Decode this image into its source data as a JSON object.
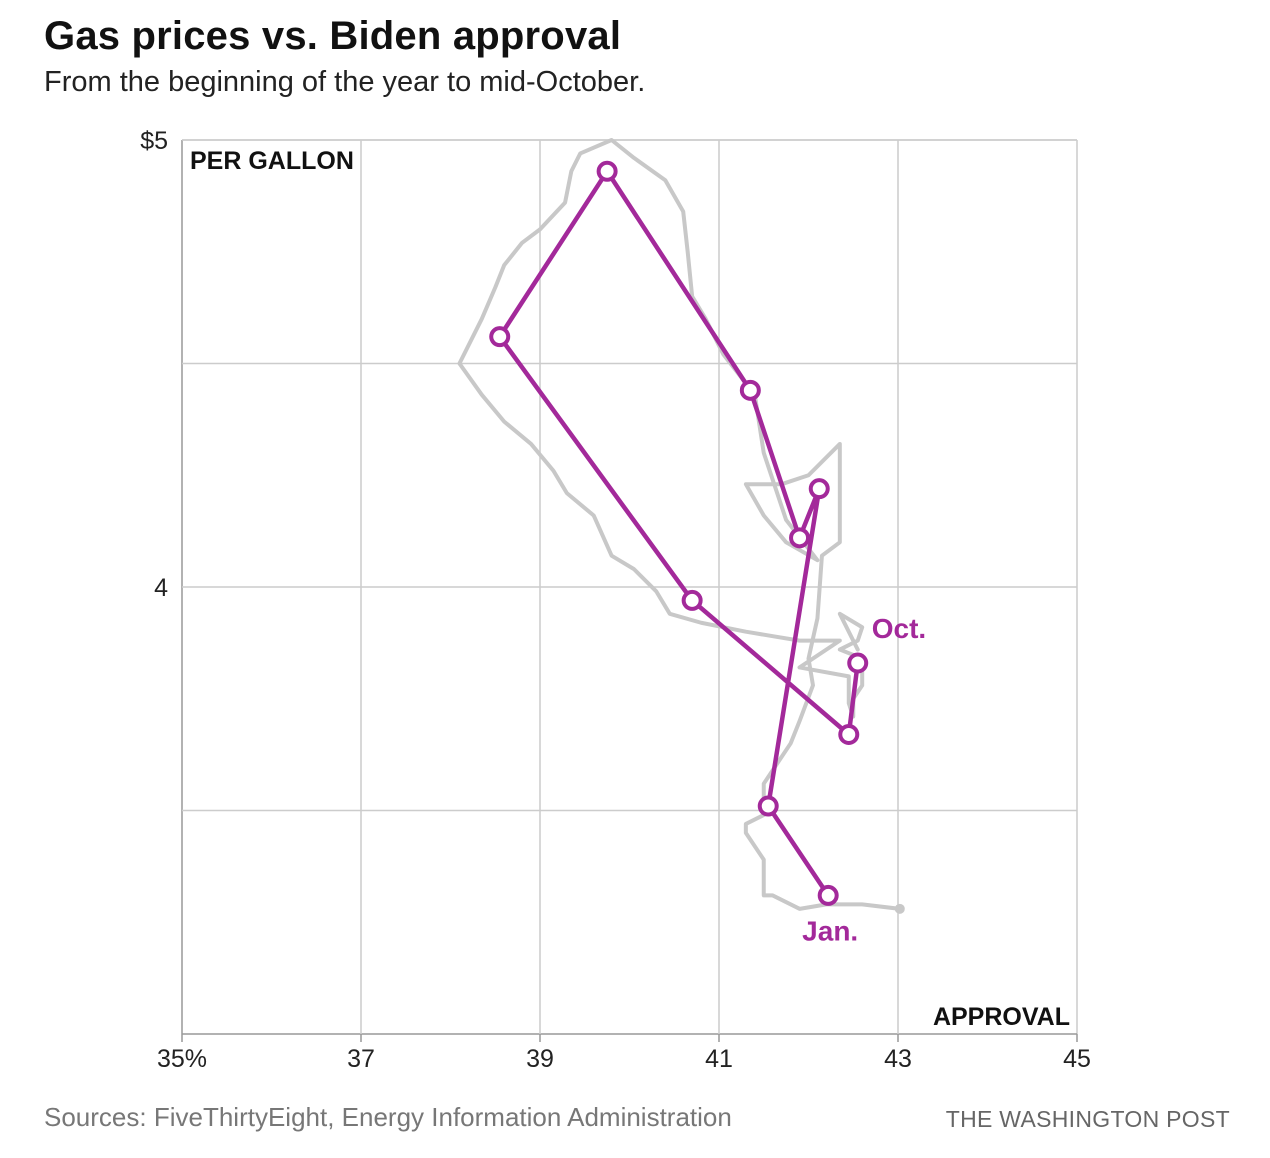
{
  "title": "Gas prices vs. Biden approval",
  "subtitle": "From the beginning of the year to mid-October.",
  "footer": {
    "source": "Sources: FiveThirtyEight, Energy Information Administration",
    "credit": "THE WASHINGTON POST"
  },
  "chart_data": {
    "type": "scatter",
    "xlabel": "APPROVAL",
    "ylabel": "PER GALLON",
    "xlim": [
      35,
      45
    ],
    "ylim": [
      3,
      5
    ],
    "x_ticks": [
      {
        "value": 35,
        "label": "35%"
      },
      {
        "value": 37,
        "label": "37"
      },
      {
        "value": 39,
        "label": "39"
      },
      {
        "value": 41,
        "label": "41"
      },
      {
        "value": 43,
        "label": "43"
      },
      {
        "value": 45,
        "label": "45"
      }
    ],
    "y_ticks": [
      {
        "value": 5,
        "label": "$5"
      },
      {
        "value": 4.5,
        "label": ""
      },
      {
        "value": 4,
        "label": "4"
      },
      {
        "value": 3.5,
        "label": ""
      }
    ],
    "grid": true,
    "colors": {
      "monthly": "#a3299a",
      "weekly": "#c8c8c8",
      "grid": "#cccccc"
    },
    "series": [
      {
        "style": "weekly-line",
        "points": [
          [
            43.02,
            3.28
          ],
          [
            42.6,
            3.29
          ],
          [
            42.2,
            3.29
          ],
          [
            41.9,
            3.28
          ],
          [
            41.6,
            3.31
          ],
          [
            41.5,
            3.31
          ],
          [
            41.5,
            3.39
          ],
          [
            41.3,
            3.45
          ],
          [
            41.3,
            3.47
          ],
          [
            41.6,
            3.5
          ],
          [
            41.5,
            3.52
          ],
          [
            41.5,
            3.56
          ],
          [
            41.6,
            3.59
          ],
          [
            41.8,
            3.65
          ],
          [
            41.9,
            3.7
          ],
          [
            42.05,
            3.78
          ],
          [
            42.0,
            3.84
          ],
          [
            42.1,
            3.93
          ],
          [
            42.15,
            4.07
          ],
          [
            42.35,
            4.1
          ],
          [
            42.35,
            4.16
          ],
          [
            42.35,
            4.25
          ],
          [
            42.35,
            4.32
          ],
          [
            42.0,
            4.25
          ],
          [
            41.7,
            4.23
          ],
          [
            41.3,
            4.23
          ],
          [
            41.5,
            4.16
          ],
          [
            41.75,
            4.1
          ],
          [
            42.1,
            4.06
          ],
          [
            41.75,
            4.15
          ],
          [
            41.5,
            4.3
          ],
          [
            41.4,
            4.43
          ],
          [
            41.05,
            4.52
          ],
          [
            40.85,
            4.6
          ],
          [
            40.7,
            4.65
          ],
          [
            40.65,
            4.75
          ],
          [
            40.6,
            4.84
          ],
          [
            40.4,
            4.91
          ],
          [
            40.05,
            4.96
          ],
          [
            39.8,
            5.0
          ],
          [
            39.45,
            4.97
          ],
          [
            39.35,
            4.93
          ],
          [
            39.28,
            4.86
          ],
          [
            39.0,
            4.8
          ],
          [
            38.8,
            4.77
          ],
          [
            38.6,
            4.72
          ],
          [
            38.5,
            4.67
          ],
          [
            38.35,
            4.6
          ],
          [
            38.1,
            4.5
          ],
          [
            38.35,
            4.43
          ],
          [
            38.6,
            4.37
          ],
          [
            38.9,
            4.32
          ],
          [
            39.15,
            4.26
          ],
          [
            39.3,
            4.21
          ],
          [
            39.6,
            4.16
          ],
          [
            39.8,
            4.07
          ],
          [
            40.05,
            4.04
          ],
          [
            40.3,
            3.99
          ],
          [
            40.45,
            3.94
          ],
          [
            40.8,
            3.92
          ],
          [
            41.3,
            3.9
          ],
          [
            41.9,
            3.88
          ],
          [
            42.35,
            3.88
          ],
          [
            41.9,
            3.82
          ],
          [
            42.45,
            3.8
          ],
          [
            42.45,
            3.74
          ],
          [
            42.5,
            3.71
          ],
          [
            42.5,
            3.75
          ],
          [
            42.6,
            3.78
          ],
          [
            42.6,
            3.84
          ],
          [
            42.35,
            3.86
          ],
          [
            42.55,
            3.88
          ],
          [
            42.6,
            3.91
          ],
          [
            42.35,
            3.94
          ],
          [
            42.55,
            3.86
          ]
        ]
      },
      {
        "style": "monthly-markers",
        "points": [
          [
            42.22,
            3.31
          ],
          [
            41.55,
            3.51
          ],
          [
            42.12,
            4.22
          ],
          [
            41.9,
            4.11
          ],
          [
            41.35,
            4.44
          ],
          [
            39.75,
            4.93
          ],
          [
            38.55,
            4.56
          ],
          [
            40.7,
            3.97
          ],
          [
            42.45,
            3.67
          ],
          [
            42.55,
            3.83
          ]
        ],
        "labels": [
          {
            "text": "Jan.",
            "point_index": 0,
            "position": "below"
          },
          {
            "text": "Oct.",
            "point_index": 9,
            "position": "above-right"
          }
        ]
      }
    ]
  }
}
